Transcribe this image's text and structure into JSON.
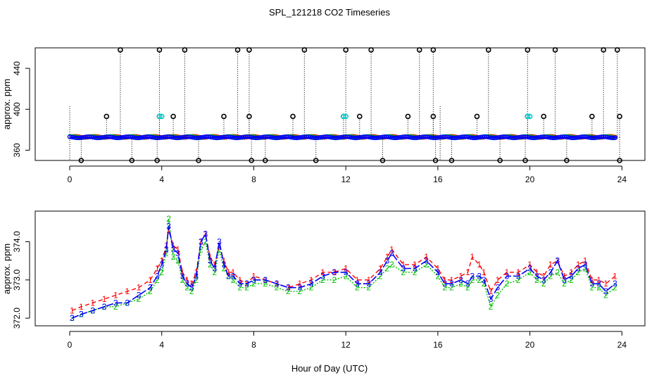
{
  "title": "SPL_121218  CO2 Timeseries",
  "xlabel": "Hour of Day (UTC)",
  "colors": {
    "series1": "#ff0000",
    "series2": "#00c000",
    "series3": "#0000ff",
    "highlight": "#00cccc",
    "outlier": "#000000"
  },
  "chart_data": [
    {
      "type": "scatter",
      "title": "",
      "xlabel": "",
      "ylabel": "approx. ppm",
      "xlim": [
        -1.5,
        25
      ],
      "ylim": [
        350,
        460
      ],
      "xticks": [
        "0",
        "4",
        "8",
        "12",
        "16",
        "20",
        "24"
      ],
      "yticks": [
        "360",
        "400",
        "440"
      ],
      "baseline": 372.5,
      "outliers_high_458": [
        2.2,
        3.9,
        5.0,
        7.3,
        7.8,
        10.2,
        12.0,
        13.1,
        15.2,
        15.8,
        18.2,
        19.9,
        21.1,
        23.2,
        23.8
      ],
      "outliers_mid_393": [
        1.6,
        3.9,
        4.5,
        6.7,
        7.8,
        9.7,
        11.9,
        12.6,
        14.7,
        15.8,
        17.7,
        19.9,
        20.6,
        22.7,
        23.9
      ],
      "outliers_low_350": [
        0.5,
        2.7,
        3.8,
        5.6,
        7.9,
        8.5,
        10.7,
        13.6,
        15.9,
        16.6,
        18.7,
        19.8,
        21.6,
        23.9
      ],
      "gap_markers": [
        0.0,
        16.1
      ],
      "series": [
        {
          "name": "1",
          "y": 373.0
        },
        {
          "name": "2",
          "y": 372.9
        },
        {
          "name": "3",
          "y": 372.6
        }
      ]
    },
    {
      "type": "line",
      "title": "",
      "xlabel": "Hour of Day (UTC)",
      "ylabel": "approx. ppm",
      "xlim": [
        -1.5,
        25
      ],
      "ylim": [
        371.8,
        374.8
      ],
      "xticks": [
        "0",
        "4",
        "8",
        "12",
        "16",
        "20",
        "24"
      ],
      "yticks": [
        "372.0",
        "373.0",
        "374.0"
      ],
      "x": [
        0.1,
        0.5,
        1.0,
        1.5,
        2.0,
        2.5,
        3.0,
        3.5,
        3.8,
        4.0,
        4.2,
        4.3,
        4.5,
        4.7,
        4.9,
        5.1,
        5.3,
        5.5,
        5.7,
        5.9,
        6.1,
        6.3,
        6.5,
        6.7,
        6.9,
        7.1,
        7.4,
        7.7,
        8.0,
        8.5,
        9.0,
        9.5,
        10.0,
        10.5,
        11.0,
        11.5,
        12.0,
        12.5,
        13.0,
        13.5,
        13.8,
        14.0,
        14.5,
        15.0,
        15.5,
        16.0,
        16.3,
        16.6,
        17.0,
        17.3,
        17.5,
        17.8,
        18.0,
        18.3,
        18.6,
        19.0,
        19.5,
        20.0,
        20.3,
        20.6,
        20.9,
        21.2,
        21.5,
        21.8,
        22.1,
        22.4,
        22.7,
        23.0,
        23.3,
        23.7
      ],
      "series": [
        {
          "name": "1",
          "values": [
            372.2,
            372.3,
            372.4,
            372.5,
            372.6,
            372.7,
            372.8,
            373.0,
            373.3,
            373.5,
            373.9,
            374.3,
            373.9,
            373.8,
            373.2,
            373.0,
            372.9,
            373.2,
            374.0,
            374.2,
            373.6,
            373.4,
            373.9,
            373.5,
            373.2,
            373.2,
            373.0,
            372.9,
            373.1,
            373.0,
            372.9,
            372.8,
            372.9,
            373.0,
            373.2,
            373.2,
            373.3,
            373.0,
            373.0,
            373.3,
            373.6,
            373.8,
            373.4,
            373.4,
            373.6,
            373.3,
            373.0,
            373.0,
            373.1,
            373.2,
            373.6,
            373.4,
            373.2,
            372.7,
            373.0,
            373.2,
            373.2,
            373.4,
            373.2,
            373.1,
            373.4,
            373.5,
            373.1,
            373.2,
            373.4,
            373.5,
            373.0,
            373.0,
            372.9,
            373.1
          ]
        },
        {
          "name": "2",
          "values": [
            372.0,
            372.1,
            372.2,
            372.3,
            372.3,
            372.4,
            372.5,
            372.7,
            373.0,
            373.2,
            373.7,
            374.6,
            373.6,
            373.5,
            373.0,
            372.8,
            372.7,
            373.0,
            373.8,
            374.0,
            373.4,
            373.2,
            373.8,
            373.3,
            373.1,
            373.0,
            372.8,
            372.8,
            372.9,
            372.9,
            372.8,
            372.7,
            372.7,
            372.8,
            373.0,
            373.0,
            373.1,
            372.8,
            372.8,
            373.1,
            373.3,
            373.4,
            373.2,
            373.2,
            373.4,
            373.1,
            372.8,
            372.8,
            372.9,
            372.8,
            373.0,
            373.0,
            372.9,
            372.3,
            372.6,
            372.9,
            373.0,
            373.2,
            373.0,
            372.9,
            373.1,
            373.2,
            372.9,
            373.0,
            373.2,
            373.3,
            372.8,
            372.8,
            372.6,
            372.8
          ]
        },
        {
          "name": "3",
          "values": [
            372.0,
            372.1,
            372.2,
            372.3,
            372.4,
            372.4,
            372.6,
            372.8,
            373.1,
            373.4,
            373.8,
            374.4,
            373.8,
            373.7,
            373.1,
            372.9,
            372.8,
            373.1,
            374.0,
            374.2,
            373.5,
            373.3,
            374.0,
            373.4,
            373.1,
            373.1,
            372.9,
            372.9,
            373.0,
            373.0,
            372.9,
            372.8,
            372.8,
            372.9,
            373.1,
            373.2,
            373.2,
            372.9,
            372.9,
            373.2,
            373.5,
            373.7,
            373.3,
            373.3,
            373.5,
            373.2,
            372.9,
            372.9,
            373.0,
            372.9,
            373.1,
            373.1,
            373.0,
            372.5,
            372.8,
            373.1,
            373.1,
            373.3,
            373.1,
            373.0,
            373.2,
            373.5,
            373.0,
            373.1,
            373.3,
            373.4,
            372.9,
            372.9,
            372.7,
            372.9
          ]
        }
      ]
    }
  ]
}
